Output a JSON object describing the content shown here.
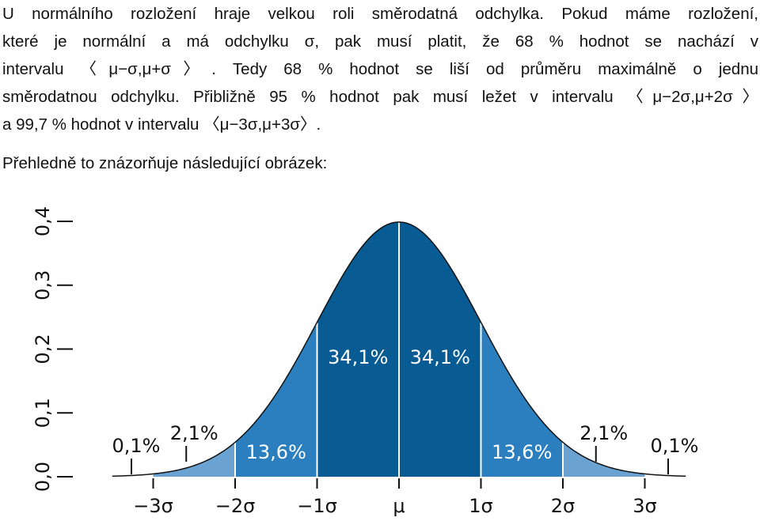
{
  "paragraph": {
    "lines": [
      "U normálního rozložení hraje velkou roli směrodatná odchylka. Pokud máme rozložení,",
      "které je normální a má odchylku σ, pak musí platit, že 68 % hodnot se nachází v",
      "intervalu 〈μ−σ,μ+σ〉. Tedy 68 % hodnot se liší od průměru maximálně o jednu",
      "směrodatnou odchylku. Přibližně 95 % hodnot pak musí ležet v intervalu 〈μ−2σ,μ+2σ〉",
      "a 99,7 % hodnot v intervalu 〈μ−3σ,μ+3σ〉."
    ]
  },
  "intro": "Přehledně to znázorňuje následující obrázek:",
  "chart_data": {
    "type": "area",
    "title": "",
    "xlabel": "",
    "ylabel": "",
    "x_ticks": [
      "−3σ",
      "−2σ",
      "−1σ",
      "μ",
      "1σ",
      "2σ",
      "3σ"
    ],
    "y_ticks": [
      "0,0",
      "0,1",
      "0,2",
      "0,3",
      "0,4"
    ],
    "ylim": [
      0,
      0.4
    ],
    "xlim": [
      -3.5,
      3.5
    ],
    "regions": [
      {
        "from": -3,
        "to": -2,
        "label": "2,1%",
        "color": "#6aa3d1"
      },
      {
        "from": -2,
        "to": -1,
        "label": "13,6%",
        "color": "#2b7fbe"
      },
      {
        "from": -1,
        "to": 0,
        "label": "34,1%",
        "color": "#085c93"
      },
      {
        "from": 0,
        "to": 1,
        "label": "34,1%",
        "color": "#085c93"
      },
      {
        "from": 1,
        "to": 2,
        "label": "13,6%",
        "color": "#2b7fbe"
      },
      {
        "from": 2,
        "to": 3,
        "label": "2,1%",
        "color": "#6aa3d1"
      }
    ],
    "tails": [
      {
        "side": "left",
        "label": "0,1%"
      },
      {
        "side": "right",
        "label": "0,1%"
      }
    ]
  }
}
